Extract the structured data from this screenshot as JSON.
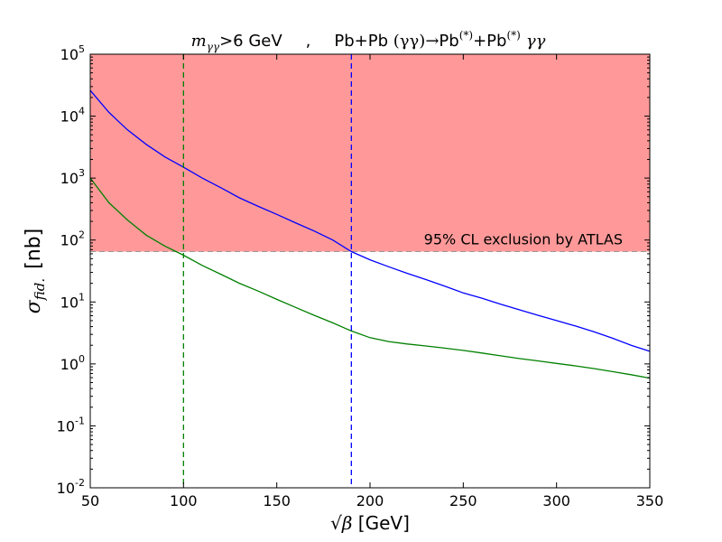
{
  "chart_data": {
    "type": "line",
    "title": {
      "cut_var": "m",
      "cut_sub": "γγ",
      "cut_rel": ">6 GeV",
      "sep": ",",
      "process_a": "Pb+Pb ",
      "process_math": "(γγ)→",
      "process_b": "Pb",
      "sup1": "(*)",
      "process_c": "+Pb",
      "sup2": "(*)",
      "process_d": "γγ"
    },
    "xlabel": {
      "sqrt": "√",
      "var": "β",
      "unit": " [GeV]"
    },
    "ylabel": {
      "var": "σ",
      "sub": "fid.",
      "unit": "[nb]"
    },
    "xlim": [
      50,
      350
    ],
    "ylim": [
      0.01,
      100000
    ],
    "yscale": "log",
    "x_ticks": [
      {
        "value": 50,
        "label": "50"
      },
      {
        "value": 100,
        "label": "100"
      },
      {
        "value": 150,
        "label": "150"
      },
      {
        "value": 200,
        "label": "200"
      },
      {
        "value": 250,
        "label": "250"
      },
      {
        "value": 300,
        "label": "300"
      },
      {
        "value": 350,
        "label": "350"
      }
    ],
    "y_ticks": [
      {
        "value": 0.01,
        "base": "10",
        "exp": "-2"
      },
      {
        "value": 0.1,
        "base": "10",
        "exp": "-1"
      },
      {
        "value": 1,
        "base": "10",
        "exp": "0"
      },
      {
        "value": 10,
        "base": "10",
        "exp": "1"
      },
      {
        "value": 100,
        "base": "10",
        "exp": "2"
      },
      {
        "value": 1000,
        "base": "10",
        "exp": "3"
      },
      {
        "value": 10000,
        "base": "10",
        "exp": "4"
      },
      {
        "value": 100000,
        "base": "10",
        "exp": "5"
      }
    ],
    "exclusion": {
      "label": "95% CL exclusion by ATLAS",
      "y_min": 65,
      "y_max": 100000,
      "color": "#ff9999",
      "line_color": "#999999"
    },
    "series": [
      {
        "name": "blue",
        "color": "#0000ff",
        "x": [
          50,
          60,
          70,
          80,
          90,
          100,
          110,
          120,
          130,
          140,
          150,
          160,
          170,
          180,
          190,
          200,
          210,
          220,
          230,
          240,
          250,
          260,
          270,
          280,
          290,
          300,
          310,
          320,
          330,
          340,
          350
        ],
        "y": [
          26000,
          11500,
          6000,
          3500,
          2200,
          1500,
          1000,
          700,
          480,
          350,
          260,
          190,
          140,
          100,
          65,
          48,
          37,
          29,
          23,
          18,
          14,
          11.5,
          9.2,
          7.5,
          6.1,
          5.0,
          4.1,
          3.3,
          2.6,
          2.0,
          1.6
        ]
      },
      {
        "name": "green",
        "color": "#008000",
        "x": [
          50,
          60,
          70,
          80,
          90,
          100,
          110,
          120,
          130,
          140,
          150,
          160,
          170,
          180,
          190,
          200,
          210,
          220,
          230,
          240,
          250,
          260,
          270,
          280,
          290,
          300,
          310,
          320,
          330,
          340,
          350
        ],
        "y": [
          1000,
          400,
          210,
          120,
          80,
          57,
          39,
          28,
          20,
          15,
          11,
          8.2,
          6.1,
          4.6,
          3.4,
          2.65,
          2.3,
          2.1,
          1.95,
          1.8,
          1.65,
          1.5,
          1.35,
          1.22,
          1.12,
          1.02,
          0.93,
          0.84,
          0.75,
          0.67,
          0.59
        ]
      }
    ],
    "vlines": [
      {
        "x": 100,
        "color": "#008000"
      },
      {
        "x": 190,
        "color": "#0000ff"
      }
    ]
  }
}
